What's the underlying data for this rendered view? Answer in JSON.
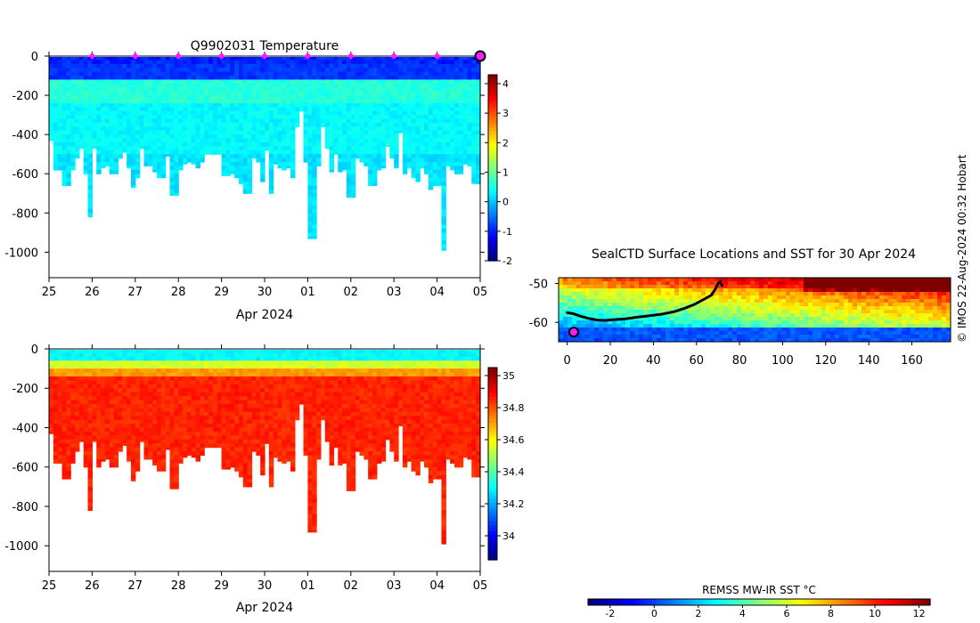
{
  "chart_data": [
    {
      "type": "heatmap",
      "title": "Q9902031  Temperature",
      "variable": "temperature",
      "xlabel": "Apr 2024",
      "ylabel": "",
      "x_tick_labels": [
        "25",
        "26",
        "27",
        "28",
        "29",
        "30",
        "01",
        "02",
        "03",
        "04",
        "05"
      ],
      "y_tick_labels": [
        "0",
        "-200",
        "-400",
        "-600",
        "-800",
        "-1000"
      ],
      "y_ticks": [
        0,
        -200,
        -400,
        -600,
        -800,
        -1000
      ],
      "ylim": [
        -1130,
        0
      ],
      "x_range_days": [
        0,
        10
      ],
      "profile_count": 100,
      "profile_max_depth_m": [
        430,
        580,
        580,
        660,
        660,
        580,
        520,
        470,
        600,
        820,
        470,
        600,
        570,
        560,
        600,
        600,
        520,
        490,
        570,
        670,
        620,
        470,
        560,
        560,
        590,
        620,
        620,
        510,
        710,
        710,
        580,
        550,
        540,
        550,
        570,
        540,
        500,
        500,
        500,
        500,
        610,
        610,
        600,
        620,
        650,
        700,
        700,
        520,
        540,
        640,
        480,
        700,
        550,
        570,
        580,
        570,
        620,
        360,
        280,
        540,
        930,
        930,
        560,
        360,
        470,
        590,
        500,
        590,
        580,
        720,
        720,
        520,
        540,
        560,
        660,
        660,
        580,
        570,
        460,
        520,
        570,
        390,
        600,
        570,
        620,
        640,
        570,
        600,
        680,
        660,
        660,
        990,
        560,
        580,
        600,
        600,
        550,
        560,
        650,
        650
      ],
      "surface_marker_days": [
        1,
        2,
        3,
        4,
        5,
        6,
        7,
        8,
        9
      ],
      "end_marker_day": 10,
      "colorbar": {
        "min": -2,
        "max": 4.3,
        "ticks": [
          -2,
          -1,
          0,
          1,
          2,
          3,
          4
        ],
        "tick_labels": [
          "-2",
          "-1",
          "0",
          "1",
          "2",
          "3",
          "4"
        ],
        "colormap": "jet"
      },
      "layer_values": [
        {
          "depth_from": 0,
          "depth_to": -120,
          "value": -0.9
        },
        {
          "depth_from": -120,
          "depth_to": -250,
          "value": 0.6
        },
        {
          "depth_from": -250,
          "depth_to": -500,
          "value": 0.35
        },
        {
          "depth_from": -500,
          "depth_to": -1130,
          "value": 0.2
        }
      ]
    },
    {
      "type": "heatmap",
      "title": "",
      "variable": "salinity",
      "xlabel": "Apr 2024",
      "ylabel": "",
      "x_tick_labels": [
        "25",
        "26",
        "27",
        "28",
        "29",
        "30",
        "01",
        "02",
        "03",
        "04",
        "05"
      ],
      "y_tick_labels": [
        "0",
        "-200",
        "-400",
        "-600",
        "-800",
        "-1000"
      ],
      "y_ticks": [
        0,
        -200,
        -400,
        -600,
        -800,
        -1000
      ],
      "ylim": [
        -1130,
        0
      ],
      "x_range_days": [
        0,
        10
      ],
      "colorbar": {
        "min": 33.85,
        "max": 35.05,
        "ticks": [
          34,
          34.2,
          34.4,
          34.6,
          34.8,
          35
        ],
        "tick_labels": [
          "34",
          "34.2",
          "34.4",
          "34.6",
          "34.8",
          "35"
        ],
        "colormap": "jet"
      },
      "layer_values": [
        {
          "depth_from": 0,
          "depth_to": -60,
          "value": 34.3
        },
        {
          "depth_from": -60,
          "depth_to": -100,
          "value": 34.55
        },
        {
          "depth_from": -100,
          "depth_to": -140,
          "value": 34.72
        },
        {
          "depth_from": -140,
          "depth_to": -1130,
          "value": 34.86
        }
      ]
    },
    {
      "type": "heatmap",
      "title": "SealCTD Surface Locations and SST for 30 Apr 2024",
      "variable": "sst",
      "xlabel": "",
      "ylabel": "",
      "xlim": [
        -4,
        178
      ],
      "ylim": [
        -65,
        -48.5
      ],
      "x_ticks": [
        0,
        20,
        40,
        60,
        80,
        100,
        120,
        140,
        160
      ],
      "x_tick_labels": [
        "0",
        "20",
        "40",
        "60",
        "80",
        "100",
        "120",
        "140",
        "160"
      ],
      "y_ticks": [
        -50,
        -60
      ],
      "y_tick_labels": [
        "-50",
        "-60"
      ],
      "track": [
        [
          0,
          -57.5
        ],
        [
          3,
          -57.8
        ],
        [
          6,
          -58.4
        ],
        [
          10,
          -59.0
        ],
        [
          14,
          -59.4
        ],
        [
          18,
          -59.5
        ],
        [
          22,
          -59.3
        ],
        [
          27,
          -59.1
        ],
        [
          32,
          -58.7
        ],
        [
          38,
          -58.3
        ],
        [
          44,
          -57.9
        ],
        [
          50,
          -57.2
        ],
        [
          55,
          -56.3
        ],
        [
          59,
          -55.4
        ],
        [
          63,
          -54.2
        ],
        [
          67,
          -53.0
        ],
        [
          69,
          -51.2
        ],
        [
          70,
          -50.0
        ],
        [
          71,
          -49.5
        ],
        [
          72,
          -50.6
        ]
      ],
      "last_position": [
        3,
        -62.5
      ],
      "colorbar": {
        "label": "REMSS MW-IR SST °C",
        "min": -3,
        "max": 12.5,
        "ticks": [
          -2,
          0,
          2,
          4,
          6,
          8,
          10,
          12
        ],
        "tick_labels": [
          "-2",
          "0",
          "2",
          "4",
          "6",
          "8",
          "10",
          "12"
        ],
        "colormap": "jet"
      }
    }
  ],
  "footer": {
    "credit": "© IMOS 22-Aug-2024 00:32 Hobart"
  },
  "colors": {
    "marker_magenta": "#ff1aff",
    "track_black": "#000000"
  }
}
